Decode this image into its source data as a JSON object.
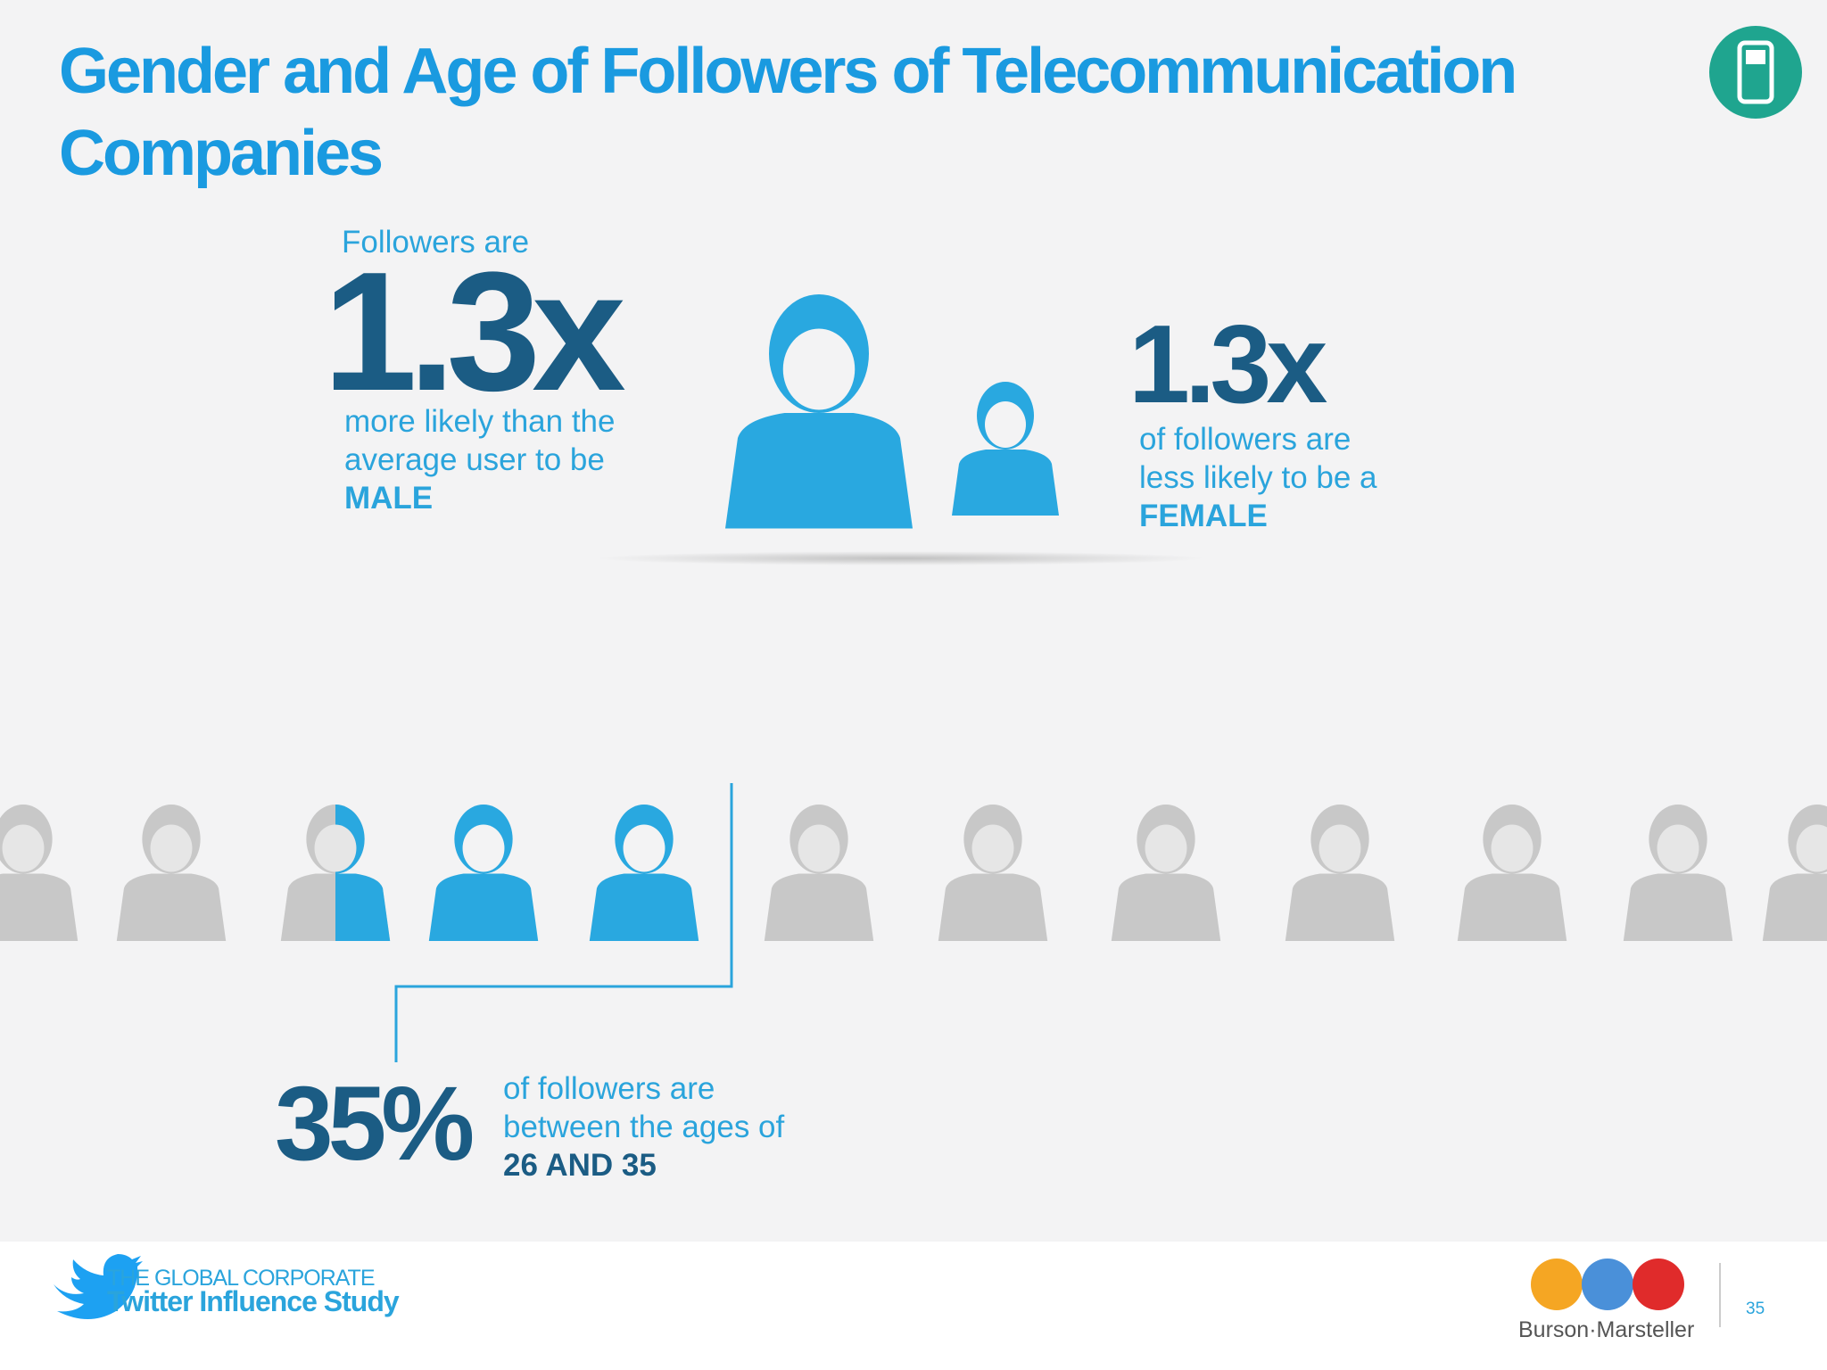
{
  "header": {
    "title_lines": [
      "Gender and Age of Followers of Telecommunication",
      "Companies"
    ]
  },
  "male": {
    "intro": "Followers are",
    "stat": "1.3x",
    "lines": [
      "more likely than the",
      "average user to be"
    ],
    "emphasis": "MALE"
  },
  "female": {
    "stat": "1.3x",
    "lines": [
      "of followers are",
      "less likely to be a"
    ],
    "emphasis": "FEMALE"
  },
  "age": {
    "stat": "35%",
    "lines": [
      "of followers are",
      "between the ages of"
    ],
    "emphasis": "26 AND 35"
  },
  "footer": {
    "study_kicker": "THE GLOBAL CORPORATE",
    "study_name": "Twitter Influence Study",
    "brand": "Burson·Marsteller",
    "page": "35"
  }
}
